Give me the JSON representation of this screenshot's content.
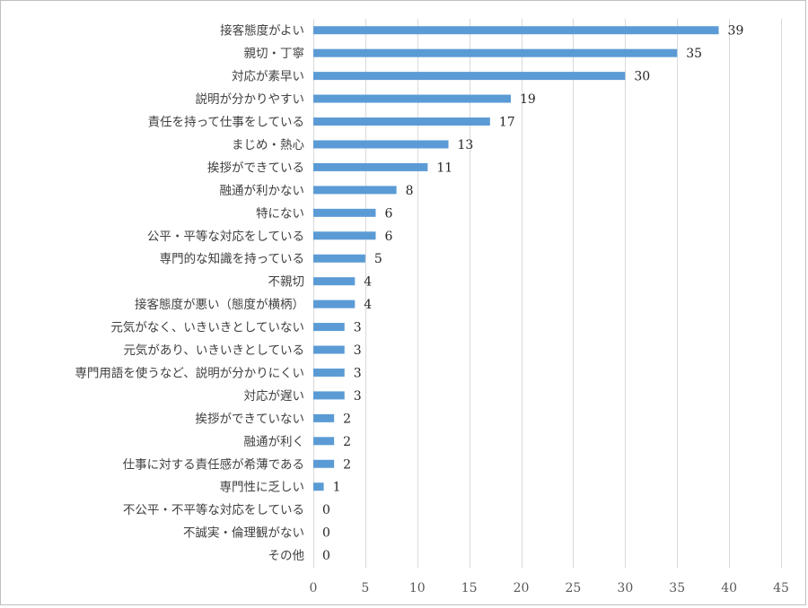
{
  "chart_data": {
    "type": "bar",
    "orientation": "horizontal",
    "title": "",
    "xlabel": "",
    "ylabel": "",
    "xlim": [
      0,
      45
    ],
    "x_ticks": [
      0,
      5,
      10,
      15,
      20,
      25,
      30,
      35,
      40,
      45
    ],
    "grid": "vertical",
    "legend": "none",
    "bar_color": "#5B9BD5",
    "categories": [
      "接客態度がよい",
      "親切・丁寧",
      "対応が素早い",
      "説明が分かりやすい",
      "責任を持って仕事をしている",
      "まじめ・熱心",
      "挨拶ができている",
      "融通が利かない",
      "特にない",
      "公平・平等な対応をしている",
      "専門的な知識を持っている",
      "不親切",
      "接客態度が悪い（態度が横柄）",
      "元気がなく、いきいきとしていない",
      "元気があり、いきいきとしている",
      "専門用語を使うなど、説明が分かりにくい",
      "対応が遅い",
      "挨拶ができていない",
      "融通が利く",
      "仕事に対する責任感が希薄である",
      "専門性に乏しい",
      "不公平・不平等な対応をしている",
      "不誠実・倫理観がない",
      "その他"
    ],
    "values": [
      39,
      35,
      30,
      19,
      17,
      13,
      11,
      8,
      6,
      6,
      5,
      4,
      4,
      3,
      3,
      3,
      3,
      2,
      2,
      2,
      1,
      0,
      0,
      0
    ],
    "data_labels": [
      "39",
      "35",
      "30",
      "19",
      "17",
      "13",
      "11",
      "8",
      "6",
      "6",
      "5",
      "4",
      "4",
      "3",
      "3",
      "3",
      "3",
      "2",
      "2",
      "2",
      "1",
      "0",
      "0",
      "0"
    ]
  }
}
